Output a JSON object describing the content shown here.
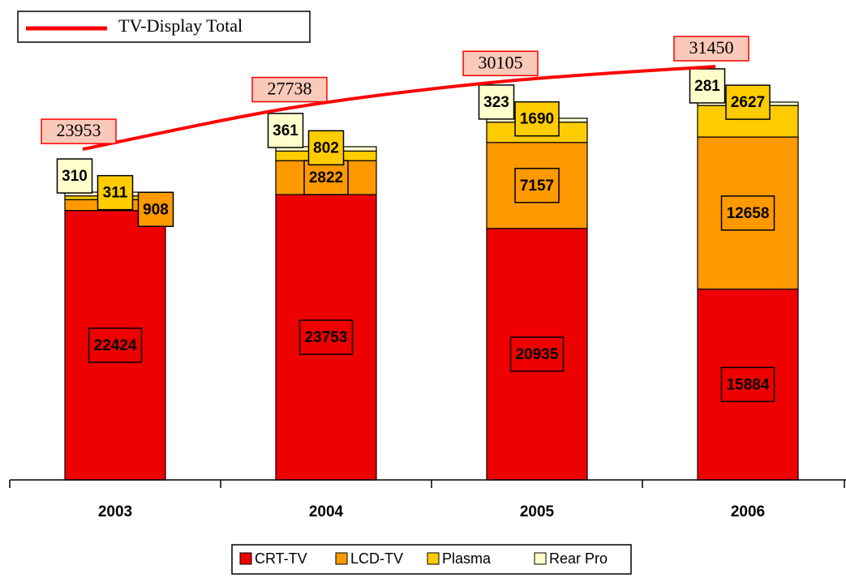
{
  "chart_data": {
    "type": "bar",
    "stacked": true,
    "categories": [
      "2003",
      "2004",
      "2005",
      "2006"
    ],
    "series": [
      {
        "name": "CRT-TV",
        "color": "#ee0000",
        "values": [
          22424,
          23753,
          20935,
          15884
        ]
      },
      {
        "name": "LCD-TV",
        "color": "#ff9900",
        "values": [
          908,
          2822,
          7157,
          12658
        ]
      },
      {
        "name": "Plasma",
        "color": "#ffcc00",
        "values": [
          311,
          802,
          1690,
          2627
        ]
      },
      {
        "name": "Rear Pro",
        "color": "#ffffcc",
        "values": [
          310,
          361,
          323,
          281
        ]
      },
      {
        "name": "TV-Display Total",
        "type": "line",
        "axis": "y2",
        "color": "#ff0000",
        "values": [
          23953,
          27738,
          30105,
          31450
        ]
      }
    ],
    "ylim": [
      0,
      38600
    ],
    "y2lim": [
      -6000,
      36000
    ]
  }
}
